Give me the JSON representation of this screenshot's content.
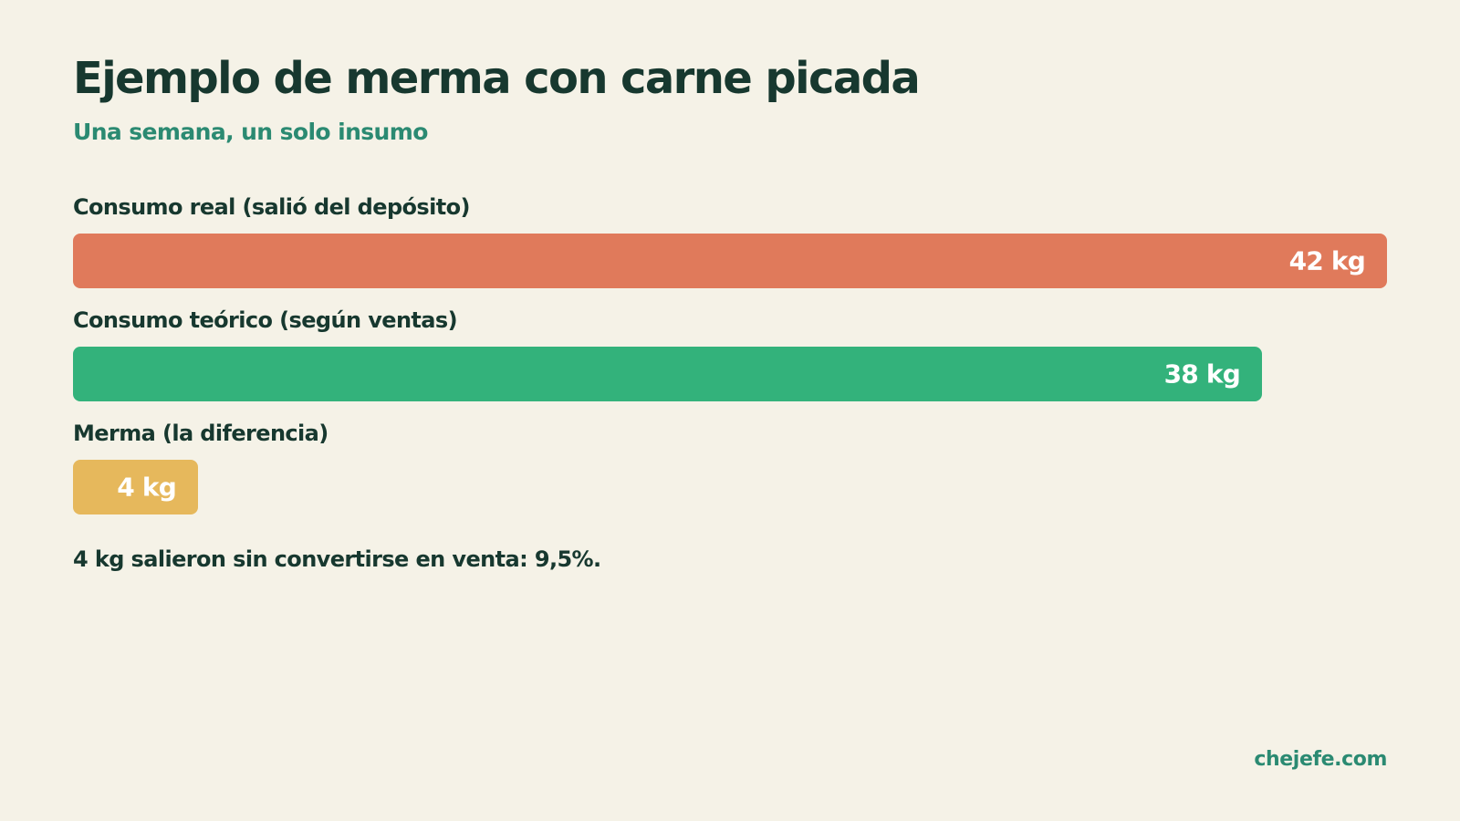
{
  "title": "Ejemplo de merma con carne picada",
  "subtitle": "Una semana, un solo insumo",
  "chart_data": {
    "type": "bar",
    "orientation": "horizontal",
    "categories": [
      "Consumo real (salió del depósito)",
      "Consumo teórico (según ventas)",
      "Merma (la diferencia)"
    ],
    "values": [
      42,
      38,
      4
    ],
    "value_labels": [
      "42 kg",
      "38 kg",
      "4 kg"
    ],
    "unit": "kg",
    "colors": [
      "#e07a5b",
      "#33b27b",
      "#e6b85c"
    ],
    "xlim": [
      0,
      42
    ],
    "grid": false,
    "legend": "none"
  },
  "note": "4 kg salieron sin convertirse en venta: 9,5%.",
  "footer": "chejefe.com",
  "colors": {
    "background": "#f5f2e7",
    "text": "#17382f",
    "accent": "#2b8a72"
  }
}
